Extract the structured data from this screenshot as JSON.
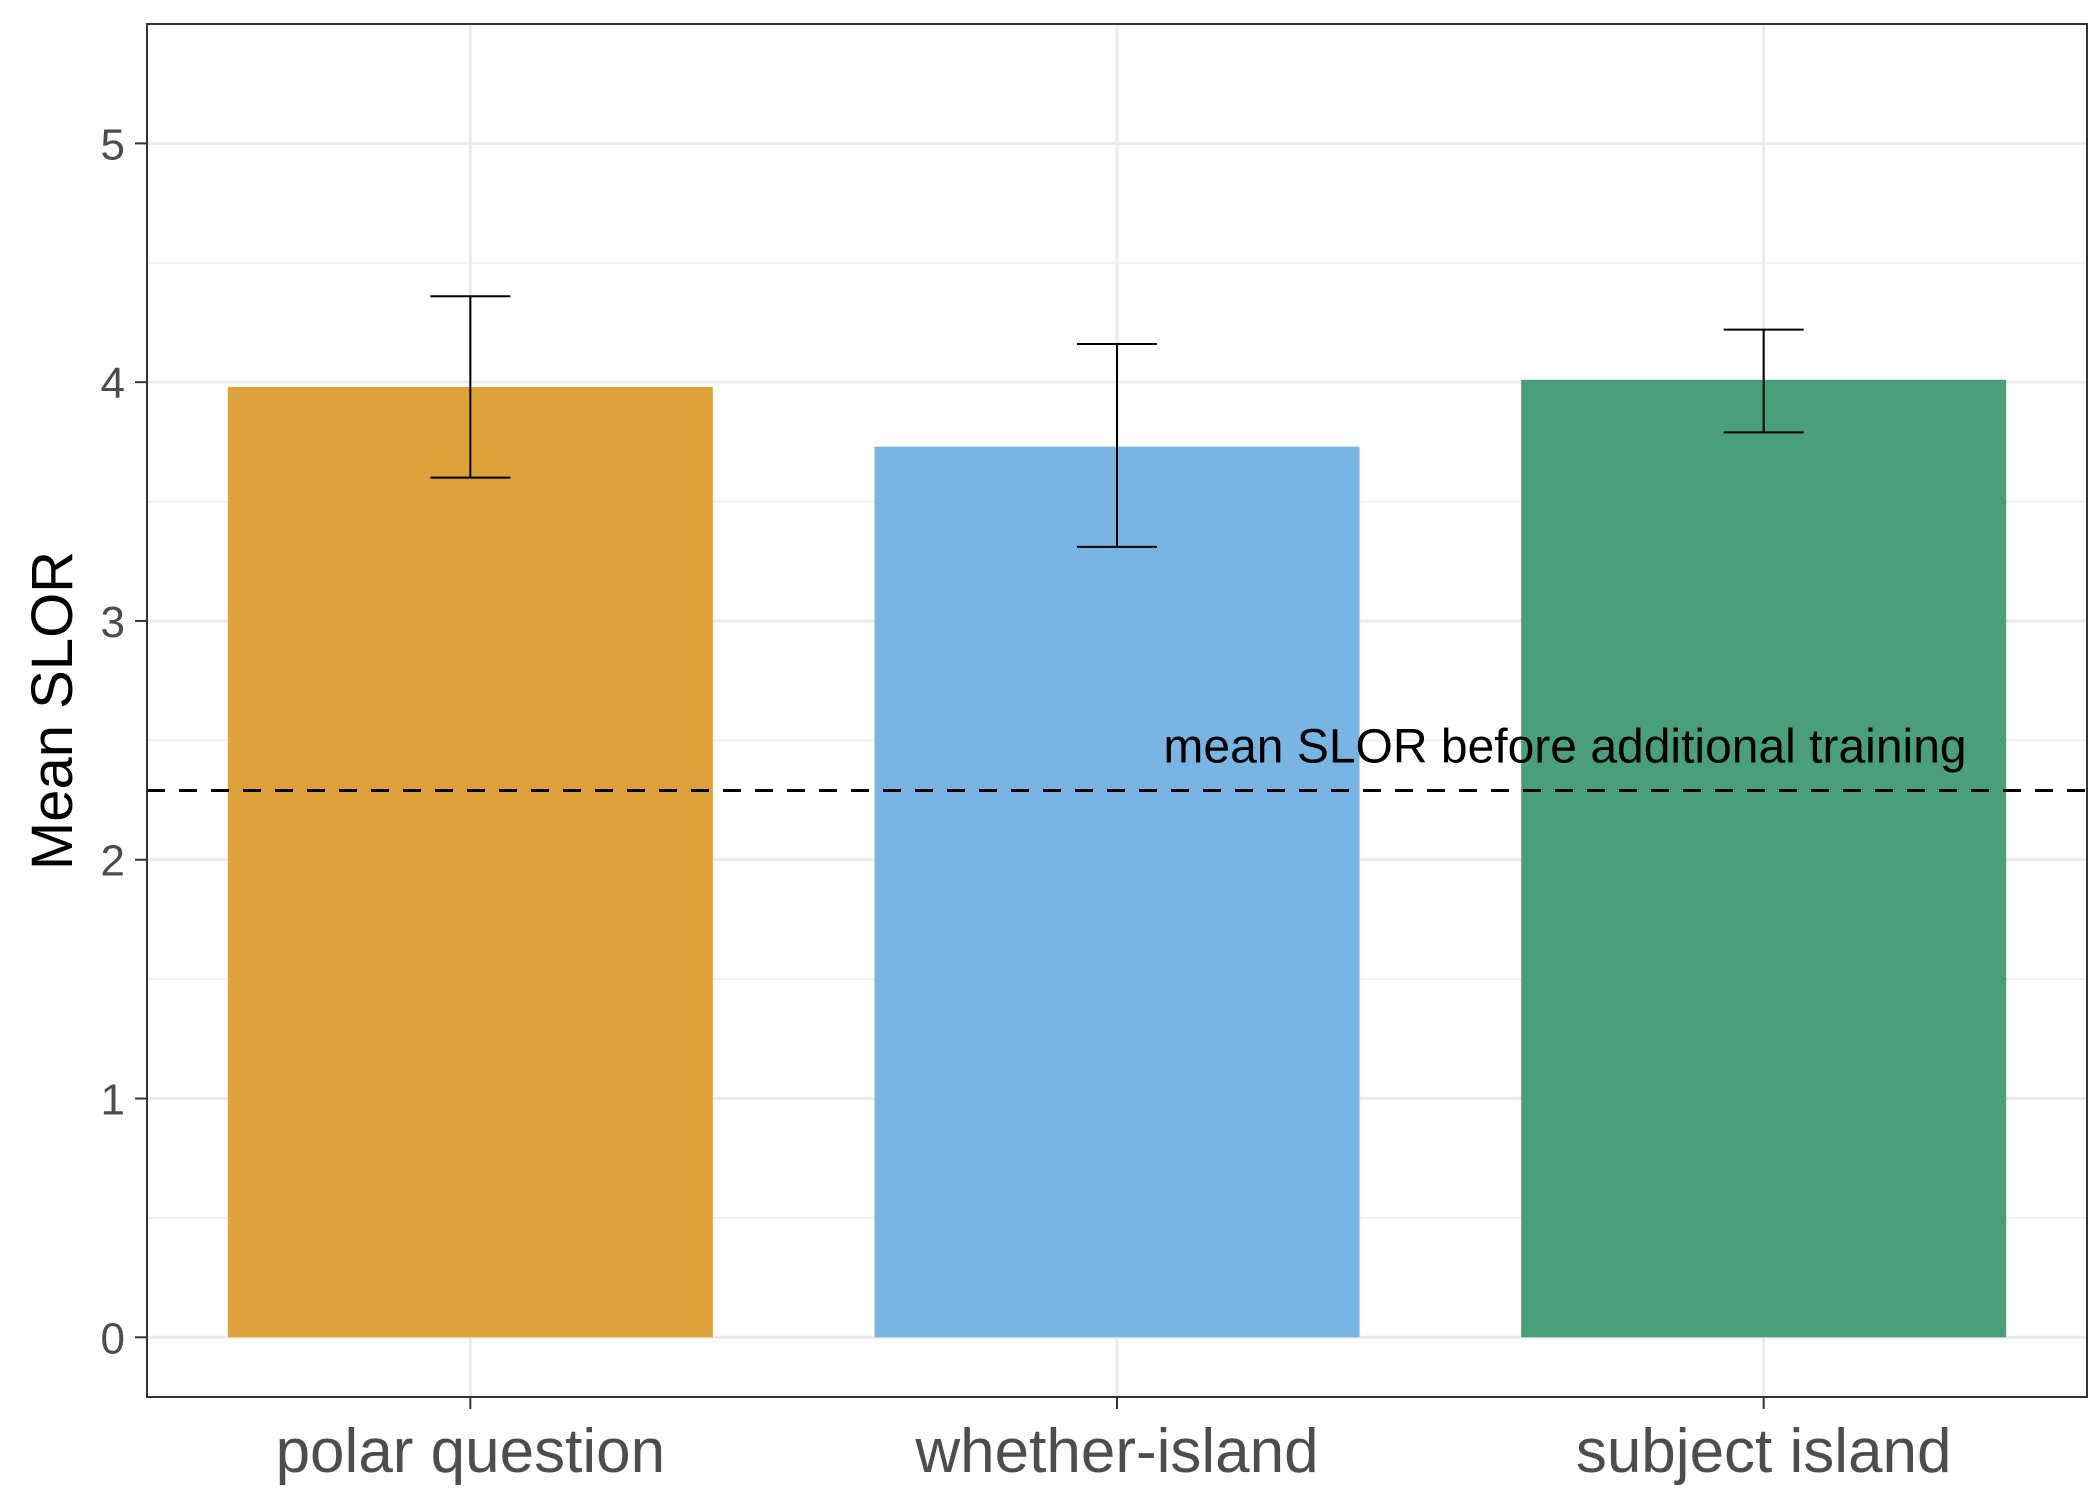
{
  "chart_data": {
    "type": "bar",
    "title": "",
    "xlabel": "",
    "ylabel": "Mean SLOR",
    "categories": [
      "polar question",
      "whether-island",
      "subject island"
    ],
    "values": [
      3.98,
      3.73,
      4.01
    ],
    "error_bars": [
      {
        "low": 3.6,
        "high": 4.36
      },
      {
        "low": 3.31,
        "high": 4.16
      },
      {
        "low": 3.79,
        "high": 4.22
      }
    ],
    "bar_colors": [
      "#DDA23A",
      "#79B4E3",
      "#4A9E7A"
    ],
    "ylim": [
      -0.25,
      5.5
    ],
    "yticks": [
      "0",
      "1",
      "2",
      "3",
      "4",
      "5"
    ],
    "grid": true,
    "legend": "none",
    "reference_line": {
      "value": 2.29,
      "style": "dashed",
      "label": "mean SLOR before additional training"
    }
  }
}
